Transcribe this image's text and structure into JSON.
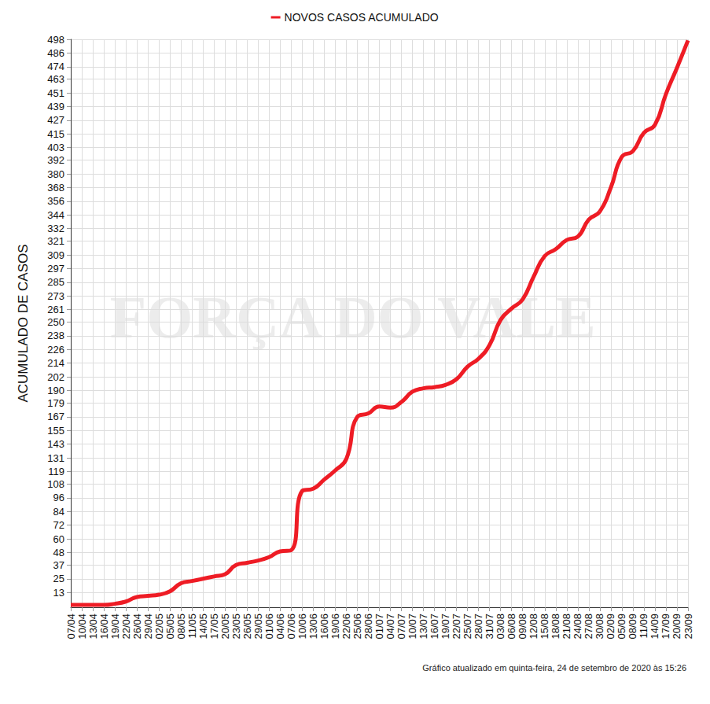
{
  "chart_data": {
    "type": "line",
    "y_label": "ACUMULADO DE CASOS",
    "annotations": [
      "FORÇA DO VALE",
      "Gráfico atualizado em quinta-feira, 24 de setembro de 2020 às 15:26"
    ],
    "categories": [
      "07/04",
      "10/04",
      "13/04",
      "16/04",
      "19/04",
      "22/04",
      "26/04",
      "29/04",
      "02/05",
      "05/05",
      "08/05",
      "11/05",
      "14/05",
      "17/05",
      "20/05",
      "23/05",
      "26/05",
      "29/05",
      "01/06",
      "04/06",
      "07/06",
      "10/06",
      "13/06",
      "16/06",
      "19/06",
      "22/06",
      "25/06",
      "28/06",
      "01/07",
      "04/07",
      "07/07",
      "10/07",
      "13/07",
      "16/07",
      "19/07",
      "22/07",
      "25/07",
      "28/07",
      "31/07",
      "03/08",
      "06/08",
      "09/08",
      "12/08",
      "15/08",
      "18/08",
      "21/08",
      "24/08",
      "27/08",
      "30/08",
      "02/09",
      "05/09",
      "08/09",
      "11/09",
      "14/09",
      "17/09",
      "20/09",
      "23/09"
    ],
    "series": [
      {
        "name": "NOVOS CASOS ACUMULADO",
        "color": "#ee1c25",
        "values": [
          2,
          2,
          2,
          2,
          3,
          5,
          9,
          10,
          11,
          14,
          21,
          23,
          25,
          27,
          29,
          37,
          39,
          41,
          44,
          49,
          50,
          102,
          104,
          112,
          120,
          130,
          167,
          170,
          176,
          175,
          180,
          189,
          192,
          193,
          195,
          200,
          211,
          218,
          230,
          252,
          262,
          270,
          290,
          308,
          314,
          322,
          325,
          340,
          347,
          368,
          395,
          400,
          416,
          423,
          450,
          473,
          497
        ]
      }
    ],
    "ylim": [
      0,
      498
    ],
    "yticks": [
      13,
      25,
      37,
      48,
      60,
      72,
      84,
      96,
      108,
      119,
      131,
      143,
      155,
      167,
      179,
      190,
      202,
      214,
      226,
      238,
      250,
      261,
      273,
      285,
      297,
      309,
      321,
      332,
      344,
      356,
      368,
      380,
      392,
      403,
      415,
      427,
      439,
      451,
      463,
      474,
      486,
      498
    ],
    "grid": true,
    "legend": "top",
    "line_style": "smooth"
  }
}
